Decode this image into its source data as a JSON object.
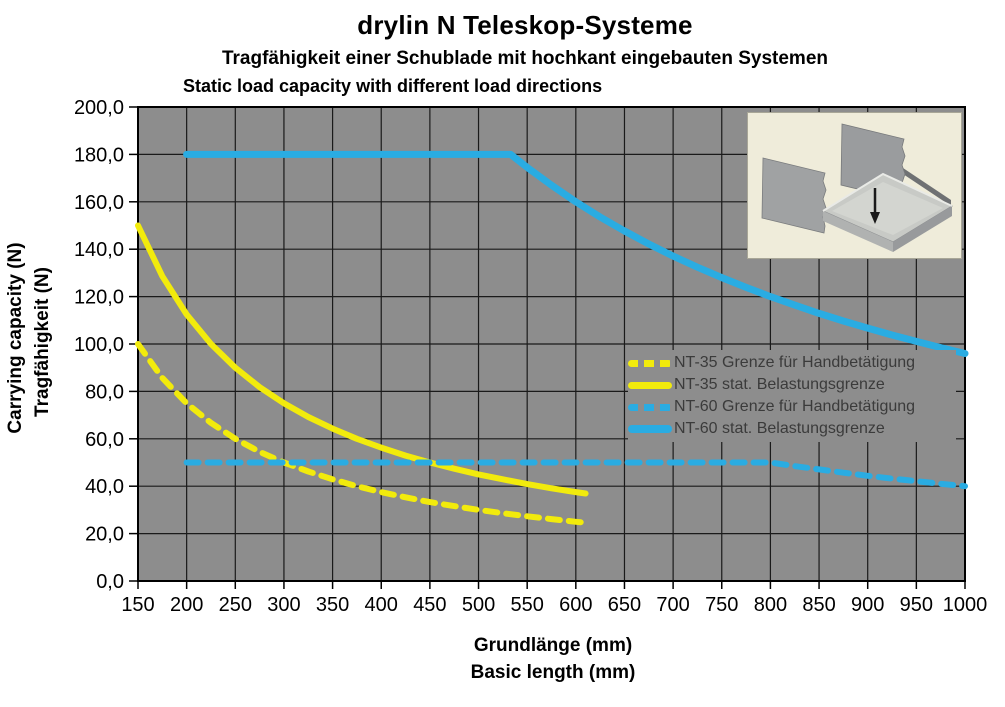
{
  "header": {
    "title": "drylin N Teleskop-Systeme",
    "subtitle_de": "Tragfähigkeit einer Schublade mit hochkant eingebauten Systemen",
    "subtitle_en": "Static load capacity with different load directions"
  },
  "axes": {
    "y_title_en": "Carrying capacity (N)",
    "y_title_de": "Tragfähigkeit (N)",
    "x_title_de": "Grundlänge (mm)",
    "x_title_en": "Basic length (mm)"
  },
  "colors": {
    "yellow": "#f2eb0c",
    "blue": "#2aace2",
    "plot_background": "#8d8d8d",
    "grid": "#1a1a1a",
    "axis": "#000000",
    "legend_text": "#3b3b3b",
    "inset_background": "#efecda"
  },
  "legend": {
    "items": [
      {
        "label": "NT-35 Grenze für Handbetätigung",
        "style": "dashed",
        "color": "#f2eb0c"
      },
      {
        "label": "NT-35 stat. Belastungsgrenze",
        "style": "solid",
        "color": "#f2eb0c"
      },
      {
        "label": "NT-60 Grenze für Handbetätigung",
        "style": "dashed",
        "color": "#2aace2"
      },
      {
        "label": "NT-60 stat. Belastungsgrenze",
        "style": "solid",
        "color": "#2aace2"
      }
    ]
  },
  "chart_data": {
    "type": "line",
    "title": "drylin N Teleskop-Systeme",
    "subtitle_de": "Tragfähigkeit einer Schublade mit hochkant eingebauten Systemen",
    "subtitle_en": "Static load capacity with different load directions",
    "xlabel": "Grundlänge (mm) / Basic length (mm)",
    "ylabel": "Carrying capacity (N) / Tragfähigkeit (N)",
    "xlim": [
      150,
      1000
    ],
    "ylim": [
      0,
      200
    ],
    "grid": true,
    "legend_position": "inside-right",
    "x_ticks": [
      150,
      200,
      250,
      300,
      350,
      400,
      450,
      500,
      550,
      600,
      650,
      700,
      750,
      800,
      850,
      900,
      950,
      1000
    ],
    "y_tick_values": [
      0,
      20,
      40,
      60,
      80,
      100,
      120,
      140,
      160,
      180,
      200
    ],
    "y_tick_labels": [
      "0,0",
      "20,0",
      "40,0",
      "60,0",
      "80,0",
      "100,0",
      "120,0",
      "140,0",
      "160,0",
      "180,0",
      "200,0"
    ],
    "series": [
      {
        "name": "NT-35 Grenze für Handbetätigung",
        "style": "dashed",
        "color": "#f2eb0c",
        "width": 6,
        "points": [
          [
            150,
            100
          ],
          [
            175,
            85.7
          ],
          [
            200,
            75
          ],
          [
            225,
            66.7
          ],
          [
            250,
            60
          ],
          [
            275,
            54.5
          ],
          [
            300,
            50
          ],
          [
            325,
            46.2
          ],
          [
            350,
            42.9
          ],
          [
            375,
            40
          ],
          [
            400,
            37.5
          ],
          [
            425,
            35.3
          ],
          [
            450,
            33.3
          ],
          [
            475,
            31.6
          ],
          [
            500,
            30
          ],
          [
            525,
            28.6
          ],
          [
            550,
            27.3
          ],
          [
            575,
            26.1
          ],
          [
            600,
            25
          ],
          [
            610,
            24.6
          ]
        ]
      },
      {
        "name": "NT-35 stat. Belastungsgrenze",
        "style": "solid",
        "color": "#f2eb0c",
        "width": 6,
        "points": [
          [
            150,
            150
          ],
          [
            175,
            128.6
          ],
          [
            200,
            112.5
          ],
          [
            225,
            100
          ],
          [
            250,
            90
          ],
          [
            275,
            81.8
          ],
          [
            300,
            75
          ],
          [
            325,
            69.2
          ],
          [
            350,
            64.3
          ],
          [
            375,
            60
          ],
          [
            400,
            56.3
          ],
          [
            425,
            52.9
          ],
          [
            450,
            50
          ],
          [
            475,
            47.4
          ],
          [
            500,
            45
          ],
          [
            525,
            42.9
          ],
          [
            550,
            40.9
          ],
          [
            575,
            39.1
          ],
          [
            600,
            37.5
          ],
          [
            610,
            36.9
          ]
        ]
      },
      {
        "name": "NT-60 Grenze für Handbetätigung",
        "style": "dashed",
        "color": "#2aace2",
        "width": 6,
        "points": [
          [
            200,
            50
          ],
          [
            780,
            50
          ],
          [
            800,
            50
          ],
          [
            825,
            48.5
          ],
          [
            850,
            47.1
          ],
          [
            875,
            45.7
          ],
          [
            900,
            44.4
          ],
          [
            925,
            43.2
          ],
          [
            950,
            42.1
          ],
          [
            975,
            41
          ],
          [
            1000,
            40
          ]
        ]
      },
      {
        "name": "NT-60 stat. Belastungsgrenze",
        "style": "solid",
        "color": "#2aace2",
        "width": 7,
        "points": [
          [
            200,
            180
          ],
          [
            533,
            180
          ],
          [
            550,
            174.5
          ],
          [
            575,
            167
          ],
          [
            600,
            160
          ],
          [
            625,
            153.6
          ],
          [
            650,
            147.7
          ],
          [
            675,
            142.2
          ],
          [
            700,
            137.1
          ],
          [
            725,
            132.4
          ],
          [
            750,
            128
          ],
          [
            775,
            123.9
          ],
          [
            800,
            120
          ],
          [
            825,
            116.4
          ],
          [
            850,
            112.9
          ],
          [
            875,
            109.7
          ],
          [
            900,
            106.7
          ],
          [
            925,
            103.8
          ],
          [
            950,
            101.1
          ],
          [
            975,
            98.5
          ],
          [
            1000,
            96
          ]
        ]
      }
    ]
  }
}
